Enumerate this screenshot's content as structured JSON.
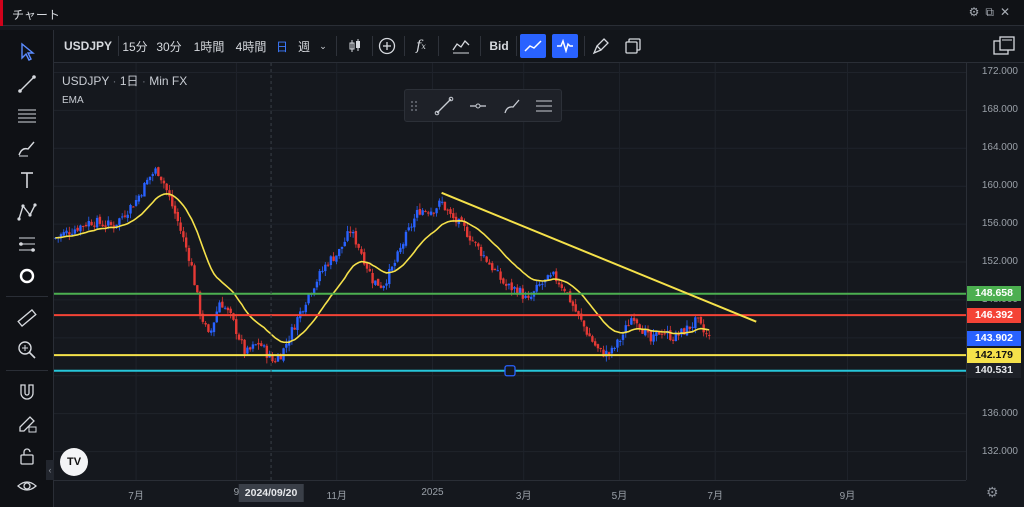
{
  "window": {
    "title": "チャート",
    "icons": [
      "gear-icon",
      "popout-icon",
      "close-icon"
    ]
  },
  "toolbar": {
    "symbol": "USDJPY",
    "intervals": [
      "15分",
      "30分",
      "1時間",
      "4時間",
      "日",
      "週"
    ],
    "active_interval": "日",
    "dropdown_icon": "chevron-down-icon",
    "price_type": "Bid",
    "icons": [
      "candles-icon",
      "add-indicator-icon",
      "fx-icon",
      "compare-icon",
      "line-up-icon",
      "wave-icon",
      "brush-icon",
      "clone-icon",
      "layout-icon"
    ]
  },
  "legend": {
    "symbol": "USDJPY",
    "sep": "·",
    "interval": "1日",
    "source": "Min FX",
    "indicator": "EMA"
  },
  "left_tools": [
    "cursor-icon",
    "trendline-icon",
    "fib-icon",
    "brush-icon",
    "text-icon",
    "pattern-icon",
    "measure-lines-icon",
    "circle-icon",
    "ruler-icon",
    "zoom-in-icon",
    "magnet-icon",
    "lock-draw-icon",
    "lock-icon",
    "eye-icon"
  ],
  "drawing_toolbar": [
    "drag-handle-icon",
    "line-tool-icon",
    "horizontal-ray-icon",
    "brush-tool-icon",
    "settings-lines-icon"
  ],
  "colors": {
    "up": "#2962ff",
    "down": "#e53935",
    "ema": "#f5e14a",
    "trend": "#f5e14a",
    "green_line": "#4caf50",
    "red_line": "#f44336",
    "yellow_line": "#f5e14a",
    "cyan_line": "#26c6da",
    "current_price_bg": "#2962ff"
  },
  "chart_data": {
    "type": "candlestick",
    "symbol": "USDJPY",
    "interval": "1日",
    "ylim": [
      129,
      173
    ],
    "price_ticks": [
      "172.000",
      "168.000",
      "164.000",
      "160.000",
      "156.000",
      "152.000",
      "148.000",
      "144.000",
      "140.000",
      "136.000",
      "132.000"
    ],
    "time_ticks": [
      {
        "label": "7月",
        "t": 0.09
      },
      {
        "label": "9",
        "t": 0.2
      },
      {
        "label": "11月",
        "t": 0.31
      },
      {
        "label": "2025",
        "t": 0.415
      },
      {
        "label": "3月",
        "t": 0.515
      },
      {
        "label": "5月",
        "t": 0.62
      },
      {
        "label": "7月",
        "t": 0.725
      },
      {
        "label": "9月",
        "t": 0.87
      }
    ],
    "crosshair_date": "2024/09/20",
    "crosshair_t": 0.238,
    "candles_end_t": 0.72,
    "close_path": [
      {
        "t": 0.0,
        "p": 154.5
      },
      {
        "t": 0.04,
        "p": 156.3
      },
      {
        "t": 0.065,
        "p": 155.8
      },
      {
        "t": 0.09,
        "p": 158.5
      },
      {
        "t": 0.105,
        "p": 161.0
      },
      {
        "t": 0.113,
        "p": 161.8
      },
      {
        "t": 0.12,
        "p": 160.5
      },
      {
        "t": 0.135,
        "p": 156.5
      },
      {
        "t": 0.15,
        "p": 152.0
      },
      {
        "t": 0.16,
        "p": 146.8
      },
      {
        "t": 0.17,
        "p": 144.0
      },
      {
        "t": 0.182,
        "p": 148.0
      },
      {
        "t": 0.195,
        "p": 146.0
      },
      {
        "t": 0.21,
        "p": 142.3
      },
      {
        "t": 0.225,
        "p": 143.5
      },
      {
        "t": 0.24,
        "p": 141.5
      },
      {
        "t": 0.25,
        "p": 142.4
      },
      {
        "t": 0.262,
        "p": 145.0
      },
      {
        "t": 0.28,
        "p": 148.8
      },
      {
        "t": 0.3,
        "p": 152.0
      },
      {
        "t": 0.312,
        "p": 153.0
      },
      {
        "t": 0.325,
        "p": 155.3
      },
      {
        "t": 0.335,
        "p": 153.5
      },
      {
        "t": 0.35,
        "p": 150.0
      },
      {
        "t": 0.36,
        "p": 149.5
      },
      {
        "t": 0.372,
        "p": 151.5
      },
      {
        "t": 0.385,
        "p": 154.5
      },
      {
        "t": 0.4,
        "p": 157.5
      },
      {
        "t": 0.415,
        "p": 157.5
      },
      {
        "t": 0.425,
        "p": 158.3
      },
      {
        "t": 0.435,
        "p": 156.8
      },
      {
        "t": 0.45,
        "p": 155.5
      },
      {
        "t": 0.465,
        "p": 153.5
      },
      {
        "t": 0.48,
        "p": 151.5
      },
      {
        "t": 0.495,
        "p": 149.5
      },
      {
        "t": 0.51,
        "p": 149.0
      },
      {
        "t": 0.52,
        "p": 147.8
      },
      {
        "t": 0.532,
        "p": 149.5
      },
      {
        "t": 0.548,
        "p": 150.5
      },
      {
        "t": 0.56,
        "p": 149.2
      },
      {
        "t": 0.572,
        "p": 146.8
      },
      {
        "t": 0.585,
        "p": 144.5
      },
      {
        "t": 0.598,
        "p": 142.5
      },
      {
        "t": 0.61,
        "p": 142.3
      },
      {
        "t": 0.622,
        "p": 144.0
      },
      {
        "t": 0.635,
        "p": 146.5
      },
      {
        "t": 0.645,
        "p": 145.0
      },
      {
        "t": 0.655,
        "p": 143.5
      },
      {
        "t": 0.665,
        "p": 144.8
      },
      {
        "t": 0.68,
        "p": 144.0
      },
      {
        "t": 0.695,
        "p": 145.0
      },
      {
        "t": 0.705,
        "p": 145.8
      },
      {
        "t": 0.712,
        "p": 144.6
      },
      {
        "t": 0.72,
        "p": 143.9
      }
    ],
    "horizontal_lines": [
      {
        "name": "green",
        "price": 148.658,
        "label": "148.658",
        "color": "#4caf50"
      },
      {
        "name": "red",
        "price": 146.392,
        "label": "146.392",
        "color": "#f44336"
      },
      {
        "name": "yellow",
        "price": 142.179,
        "label": "142.179",
        "color": "#f5e14a"
      },
      {
        "name": "cyan",
        "price": 140.531,
        "label": "140.531",
        "color": "#26c6da"
      }
    ],
    "current_price": {
      "price": 143.902,
      "label": "143.902"
    },
    "trendline": {
      "p1": {
        "t": 0.425,
        "p": 159.3
      },
      "p2": {
        "t": 0.77,
        "p": 145.7
      }
    }
  }
}
